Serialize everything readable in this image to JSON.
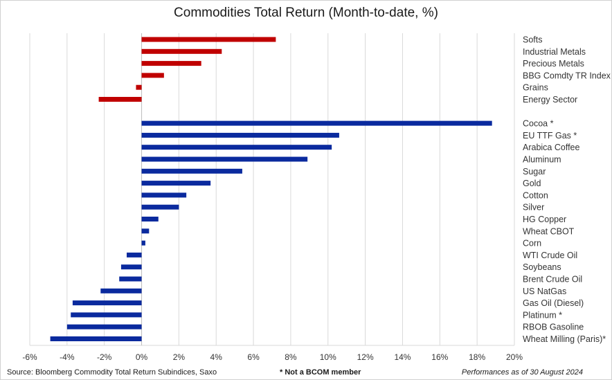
{
  "chart_data": {
    "type": "bar",
    "orientation": "horizontal",
    "title": "Commodities Total Return (Month-to-date, %)",
    "xlim": [
      -6,
      20
    ],
    "x_ticks": [
      -6,
      -4,
      -2,
      0,
      2,
      4,
      6,
      8,
      10,
      12,
      14,
      16,
      18,
      20
    ],
    "x_tick_labels": [
      "-6%",
      "-4%",
      "-2%",
      "0%",
      "2%",
      "4%",
      "6%",
      "8%",
      "10%",
      "12%",
      "14%",
      "16%",
      "18%",
      "20%"
    ],
    "grid": true,
    "groups": [
      {
        "color": "#c00000",
        "categories": [
          "Softs",
          "Industrial Metals",
          "Precious Metals",
          "BBG Comdty TR Index",
          "Grains",
          "Energy Sector"
        ],
        "values": [
          7.2,
          4.3,
          3.2,
          1.2,
          -0.3,
          -2.3
        ]
      },
      {
        "color": "#0a2a9e",
        "categories": [
          "Cocoa *",
          "EU TTF Gas *",
          "Arabica Coffee",
          "Aluminum",
          "Sugar",
          "Gold",
          "Cotton",
          "Silver",
          "HG Copper",
          "Wheat CBOT",
          "Corn",
          "WTI Crude Oil",
          "Soybeans",
          "Brent Crude Oil",
          "US NatGas",
          "Gas Oil (Diesel)",
          "Platinum *",
          "RBOB Gasoline",
          "Wheat Milling (Paris)*"
        ],
        "values": [
          18.8,
          10.6,
          10.2,
          8.9,
          5.4,
          3.7,
          2.4,
          2.0,
          0.9,
          0.4,
          0.2,
          -0.8,
          -1.1,
          -1.2,
          -2.2,
          -3.7,
          -3.8,
          -4.0,
          -4.9
        ]
      }
    ]
  },
  "footer": {
    "source": "Source: Bloomberg Commodity Total Return Subindices, Saxo",
    "note": "* Not a BCOM member",
    "as_of": "Performances as of 30 August 2024"
  }
}
